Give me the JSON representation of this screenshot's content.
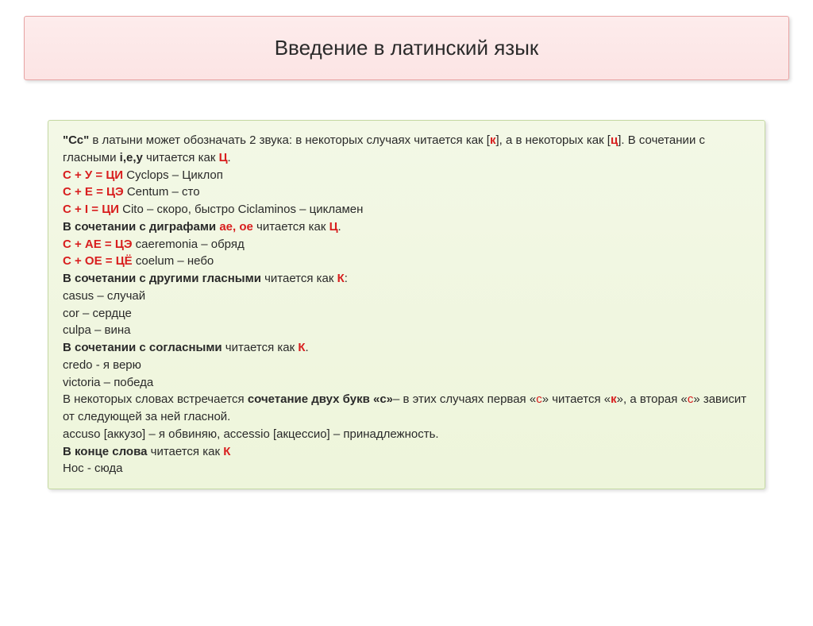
{
  "title": "Введение в латинский язык",
  "intro_lead": "\"Сс\"",
  "intro_text1": " в латыни может обозначать 2 звука: в некоторых случаях читается как [",
  "intro_k": "к",
  "intro_text2": "], а в некоторых как  [",
  "intro_ts": "ц",
  "intro_text3": "]. В сочетании с гласными ",
  "intro_vowels": "i,e,y",
  "intro_text4": " читается как  ",
  "intro_ts2": "Ц",
  "intro_dot": ".",
  "rule1_red": "С + У = ЦИ",
  "rule1_text": "  Cyclops – Циклоп",
  "rule2_red": "С + Е = ЦЭ",
  "rule2_text": "  Centum – сто",
  "rule3_red": "С + I = ЦИ",
  "rule3_text": "   Cito – скоро, быстро  Ciclaminos – цикламен",
  "digraph_bold": "В сочетании с диграфами ",
  "digraph_red": "ае, ое",
  "digraph_text": " читается как  ",
  "digraph_ts": "Ц",
  "rule4_red": "С + АЕ = ЦЭ",
  "rule4_text": "  caeremonia – обряд",
  "rule5_red": "С + ОЕ = ЦЁ",
  "rule5_text": "  coelum – небо",
  "other_bold": "В сочетании с другими гласными",
  "other_text": " читается как ",
  "other_k": "К",
  "other_colon": ":",
  "ex1": "casus – случай",
  "ex2": "cor – сердце",
  "ex3": "culpa – вина",
  "cons_bold": "В сочетании с согласными",
  "cons_text": " читается как  ",
  "cons_k": "К",
  "ex4": "credo - я верю",
  "ex5": "victoria – победа",
  "double1": "В некоторых словах встречается ",
  "double_bold": "сочетание двух букв «с»",
  "double2": "– в этих случаях первая «",
  "double_c1": "с",
  "double3": "» читается «",
  "double_k": "к",
  "double4": "», а вторая «",
  "double_c2": "с",
  "double5": "» зависит от следующей за ней гласной.",
  "ex6": "accuso [аккузо] – я обвиняю,   accessio [акцессио] – принадлежность.",
  "end_bold": "В конце слова",
  "end_text": " читается как ",
  "end_k": "К",
  "ex7": "Hoc - сюда",
  "colors": {
    "title_bg_top": "#fdecec",
    "title_bg_bottom": "#fce4e4",
    "title_border": "#e8a4a4",
    "content_bg_top": "#f3f8e6",
    "content_bg_bottom": "#eef5db",
    "content_border": "#c5d9a3",
    "text": "#2a2a2a",
    "red": "#d81e1e"
  },
  "typography": {
    "title_fontsize": 26,
    "body_fontsize": 15,
    "font_family": "Arial"
  }
}
